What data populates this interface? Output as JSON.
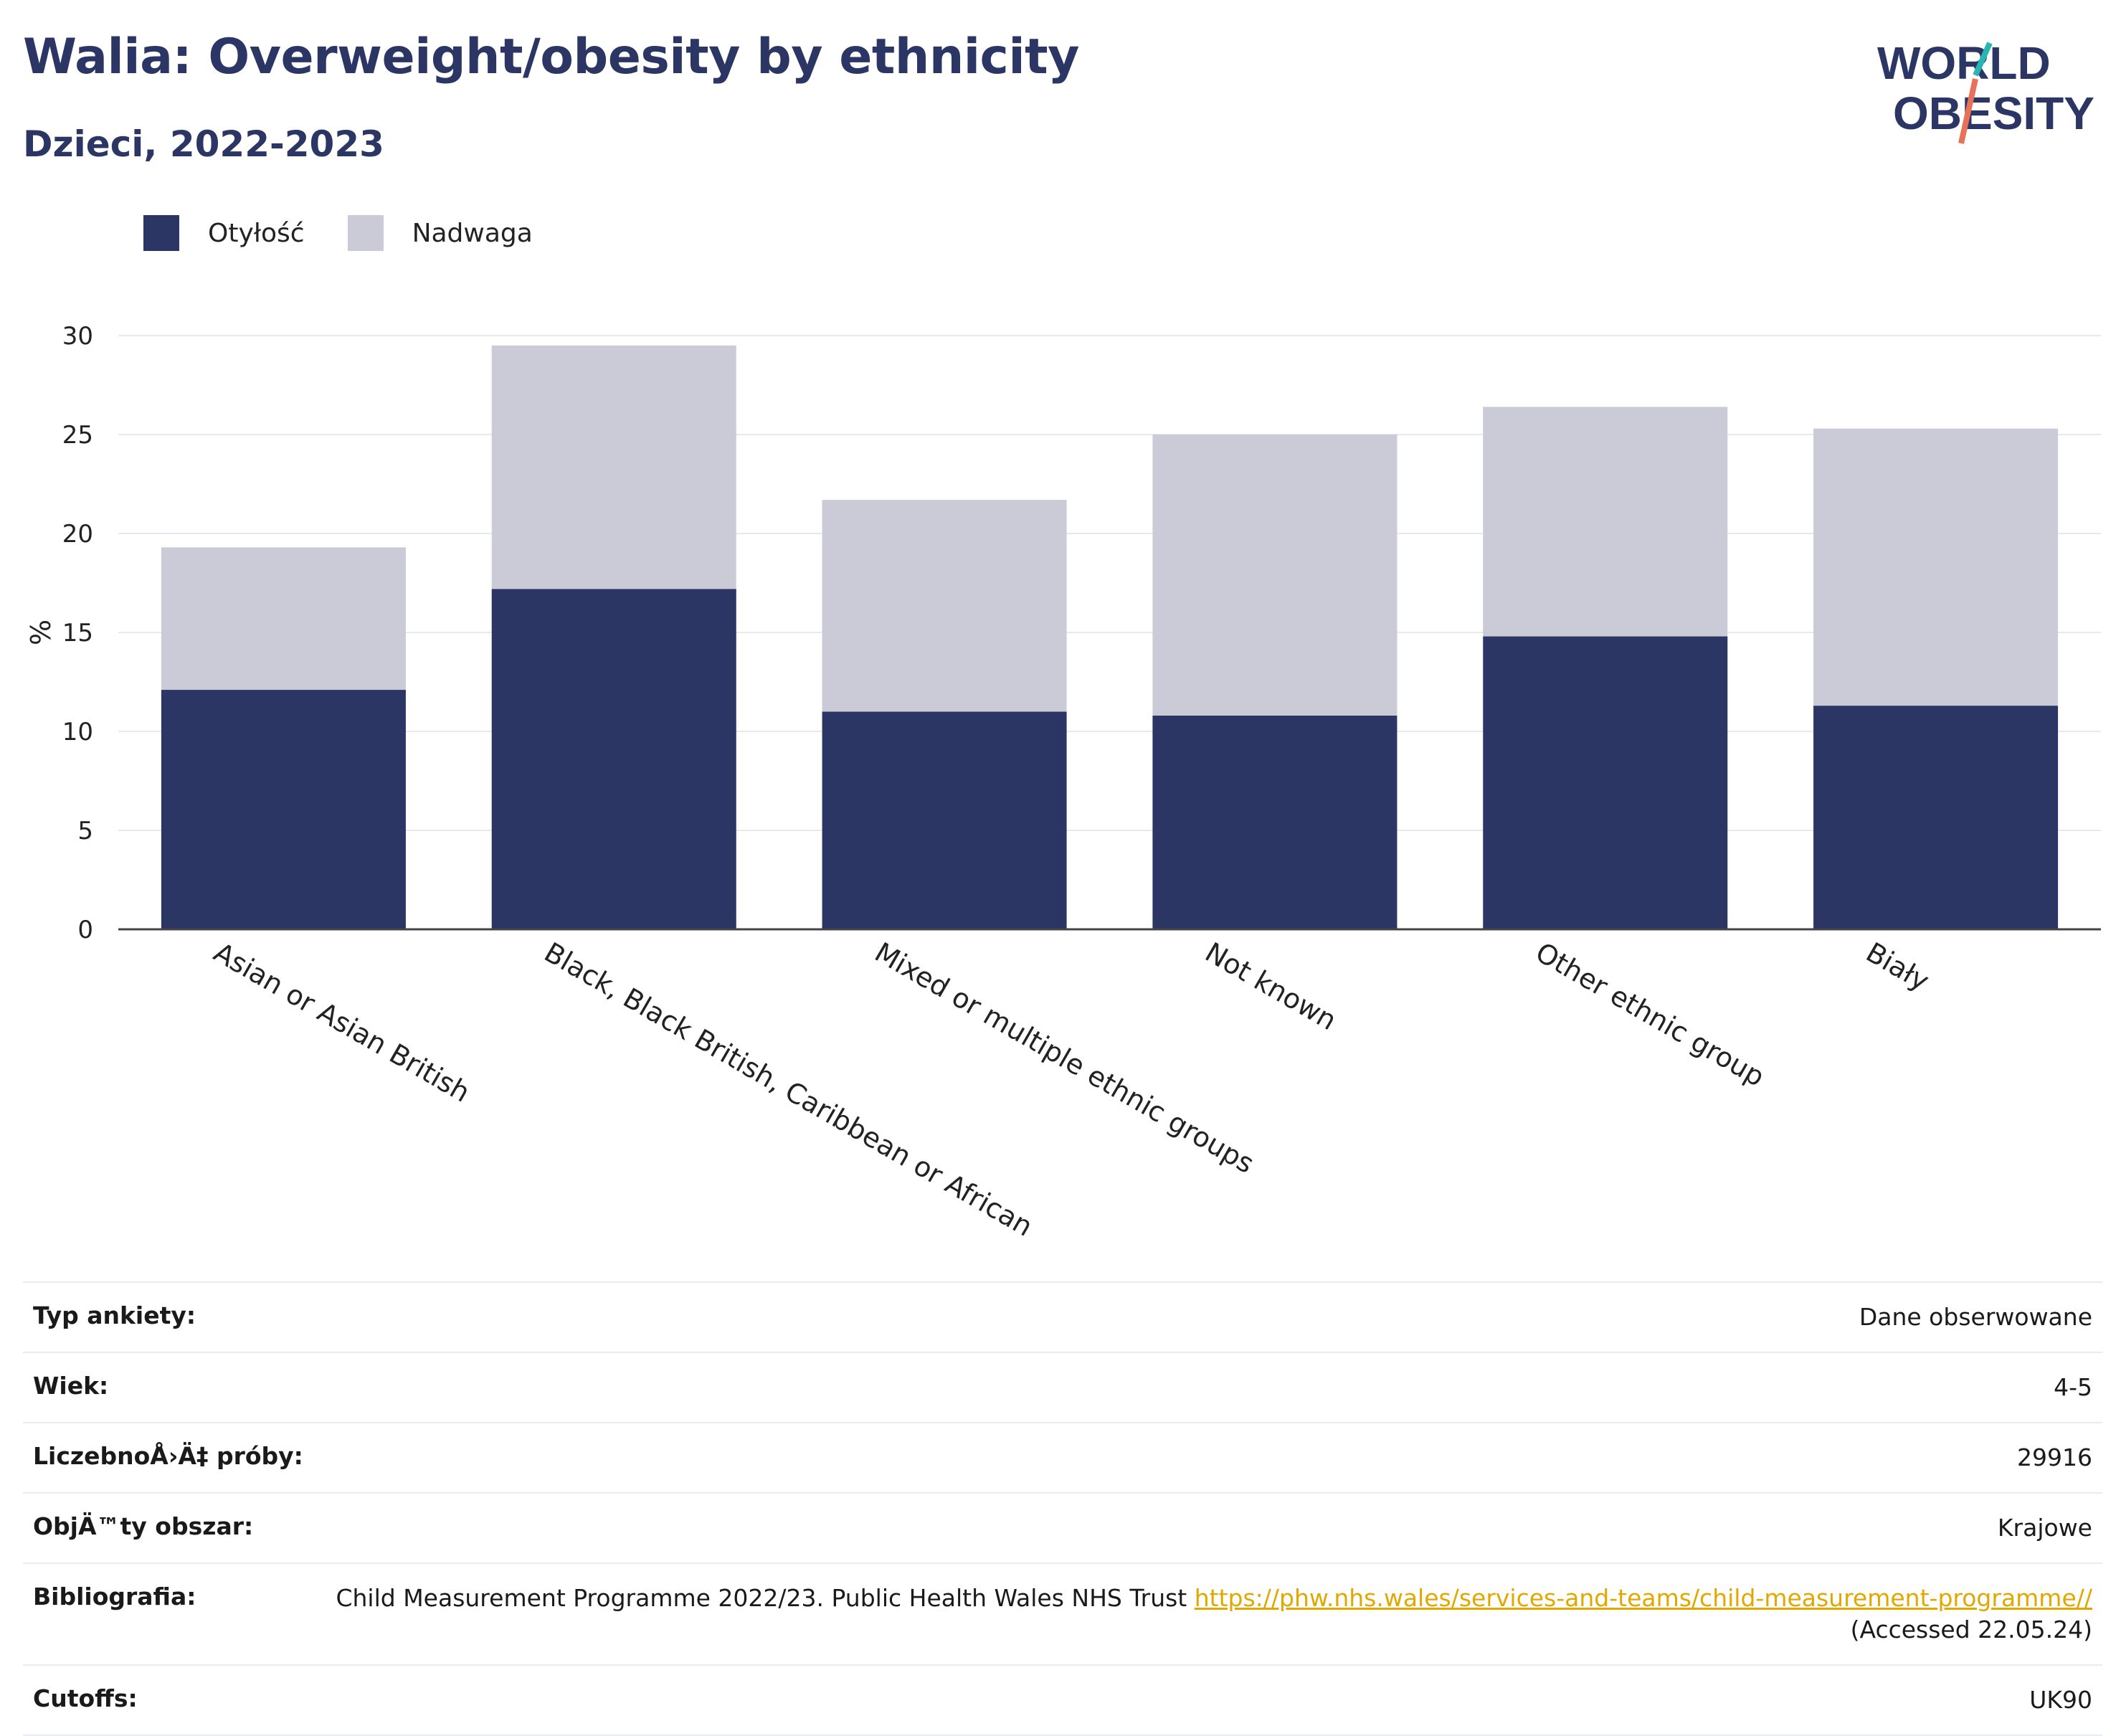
{
  "header": {
    "title": "Walia: Overweight/obesity by ethnicity",
    "subtitle": "Dzieci, 2022-2023"
  },
  "logo": {
    "line1": "WORLD",
    "line2": "OBESITY"
  },
  "colors": {
    "obesity": "#2b3664",
    "overweight": "#cacbd7",
    "text": "#2b3664",
    "link": "#e0a800",
    "grid": "#e6e9ef",
    "logo_teal": "#2bb5b2",
    "logo_coral": "#e8715a"
  },
  "chart_data": {
    "type": "bar",
    "stacked": true,
    "ylabel": "%",
    "ylim": [
      0,
      30
    ],
    "yticks": [
      0,
      5,
      10,
      15,
      20,
      25,
      30
    ],
    "grid": true,
    "legend_position": "top-left",
    "categories": [
      "Asian or Asian British",
      "Black, Black British, Caribbean or African",
      "Mixed or multiple ethnic groups",
      "Not known",
      "Other ethnic group",
      "Biały"
    ],
    "series": [
      {
        "name": "Otyłość",
        "color": "#2b3664",
        "values": [
          12.1,
          17.2,
          11.0,
          10.8,
          14.8,
          11.3
        ]
      },
      {
        "name": "Nadwaga",
        "color": "#cacbd7",
        "values": [
          7.2,
          12.3,
          10.7,
          14.2,
          11.6,
          14.0
        ]
      }
    ]
  },
  "meta": {
    "rows": [
      {
        "key": "Typ ankiety:",
        "value": "Dane obserwowane"
      },
      {
        "key": "Wiek:",
        "value": "4-5"
      },
      {
        "key": "LiczebnoÅ›Ä‡ próby:",
        "value": "29916"
      },
      {
        "key": "ObjÄ™ty obszar:",
        "value": "Krajowe"
      }
    ],
    "bibliography": {
      "key": "Bibliografia:",
      "text": "Child Measurement Programme 2022/23. Public Health Wales NHS Trust ",
      "link": "https://phw.nhs.wales/services-and-teams/child-measurement-programme//",
      "suffix": " (Accessed 22.05.24)"
    },
    "cutoffs": {
      "key": "Cutoffs:",
      "value": "UK90"
    }
  }
}
